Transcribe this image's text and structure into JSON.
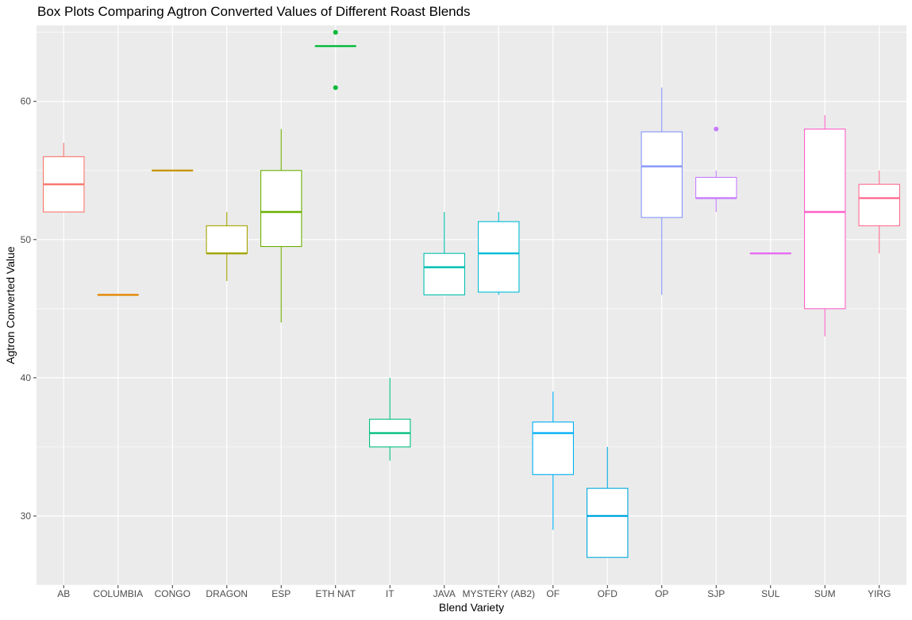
{
  "chart_data": {
    "type": "box",
    "title": "Box Plots Comparing Agtron Converted Values of Different Roast Blends",
    "xlabel": "Blend Variety",
    "ylabel": "Agtron Converted Value",
    "ylim": [
      25.0,
      65.5
    ],
    "yticks": [
      30,
      40,
      50,
      60
    ],
    "grid": true,
    "legend": "none",
    "boxes": [
      {
        "category": "AB",
        "color": "#F8766D",
        "min": 52,
        "q1": 52,
        "median": 54,
        "q3": 56,
        "max": 57,
        "outliers": []
      },
      {
        "category": "COLUMBIA",
        "color": "#E58700",
        "min": 46,
        "q1": 46,
        "median": 46,
        "q3": 46,
        "max": 46,
        "outliers": []
      },
      {
        "category": "CONGO",
        "color": "#C99800",
        "min": 55,
        "q1": 55,
        "median": 55,
        "q3": 55,
        "max": 55,
        "outliers": []
      },
      {
        "category": "DRAGON",
        "color": "#A3A500",
        "min": 47,
        "q1": 49,
        "median": 49,
        "q3": 51,
        "max": 52,
        "outliers": []
      },
      {
        "category": "ESP",
        "color": "#6BB100",
        "min": 44,
        "q1": 49.5,
        "median": 52,
        "q3": 55,
        "max": 58,
        "outliers": []
      },
      {
        "category": "ETH NAT",
        "color": "#00BA38",
        "min": 64,
        "q1": 64,
        "median": 64,
        "q3": 64,
        "max": 64,
        "outliers": [
          65,
          61
        ]
      },
      {
        "category": "IT",
        "color": "#00BF7D",
        "min": 34,
        "q1": 35,
        "median": 36,
        "q3": 37,
        "max": 40,
        "outliers": []
      },
      {
        "category": "JAVA",
        "color": "#00C0AF",
        "min": 46,
        "q1": 46,
        "median": 48,
        "q3": 49,
        "max": 52,
        "outliers": []
      },
      {
        "category": "MYSTERY (AB2)",
        "color": "#00BCD8",
        "min": 46,
        "q1": 46.2,
        "median": 49,
        "q3": 51.3,
        "max": 52,
        "outliers": []
      },
      {
        "category": "OF",
        "color": "#00B0F6",
        "min": 29,
        "q1": 33,
        "median": 36,
        "q3": 36.8,
        "max": 39,
        "outliers": []
      },
      {
        "category": "OFD",
        "color": "#00A8E1",
        "min": 27,
        "q1": 27,
        "median": 30,
        "q3": 32,
        "max": 35,
        "outliers": []
      },
      {
        "category": "OP",
        "color": "#8494FF",
        "min": 46,
        "q1": 51.6,
        "median": 55.3,
        "q3": 57.8,
        "max": 61,
        "outliers": []
      },
      {
        "category": "SJP",
        "color": "#C77CFF",
        "min": 52,
        "q1": 53,
        "median": 53,
        "q3": 54.5,
        "max": 55,
        "outliers": [
          58
        ]
      },
      {
        "category": "SUL",
        "color": "#E76BF3",
        "min": 49,
        "q1": 49,
        "median": 49,
        "q3": 49,
        "max": 49,
        "outliers": []
      },
      {
        "category": "SUM",
        "color": "#FF61C9",
        "min": 43,
        "q1": 45,
        "median": 52,
        "q3": 58,
        "max": 59,
        "outliers": []
      },
      {
        "category": "YIRG",
        "color": "#FF6C91",
        "min": 49,
        "q1": 51,
        "median": 53,
        "q3": 54,
        "max": 55,
        "outliers": []
      }
    ]
  }
}
